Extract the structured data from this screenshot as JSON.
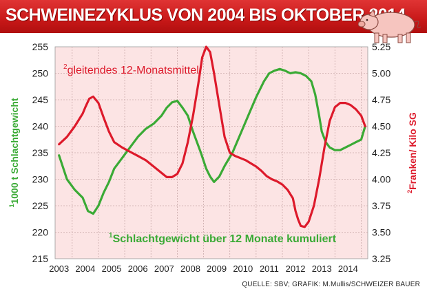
{
  "header": {
    "title": "SCHWEINEZYKLUS VON 2004 BIS OKTOBER 2014"
  },
  "source": "QUELLE: SBV; GRAFIK: M.Mullis/SCHWEIZER BAUER",
  "chart_data": {
    "type": "line",
    "title": "SCHWEINEZYKLUS VON 2004 BIS OKTOBER 2014",
    "x_tick_labels": [
      "2003",
      "2004",
      "2005",
      "2006",
      "2007",
      "2008",
      "2009",
      "2010",
      "2011",
      "2012",
      "2013",
      "2014"
    ],
    "y_left": {
      "label_sup": "1",
      "label": "1000 t Schlachtgewicht",
      "ylim": [
        215,
        255
      ],
      "ticks": [
        "215",
        "220",
        "225",
        "230",
        "235",
        "240",
        "245",
        "250",
        "255"
      ]
    },
    "y_right": {
      "label_sup": "2",
      "label": "Franken/ Kilo SG",
      "ylim": [
        3.25,
        5.25
      ],
      "ticks": [
        "3.25",
        "3.50",
        "3.75",
        "4.00",
        "4.25",
        "4.50",
        "4.75",
        "5.00",
        "5.25"
      ]
    },
    "grid": true,
    "colors": {
      "series1": "#3aaa35",
      "series2": "#dd1a2b",
      "plot_bg": "#fce4e4",
      "title_bg": "#c81818"
    },
    "annotations": [
      {
        "sup": "2",
        "text": "gleitendes 12-Monatsmittel",
        "color": "#dd1a2b"
      },
      {
        "sup": "1",
        "text": "Schlachtgewicht über 12 Monate kumuliert",
        "color": "#3aaa35"
      }
    ],
    "series": [
      {
        "name": "Schlachtgewicht über 12 Monate kumuliert",
        "axis": "left",
        "x": [
          2003.0,
          2003.3,
          2003.6,
          2003.9,
          2004.1,
          2004.3,
          2004.5,
          2004.7,
          2004.9,
          2005.1,
          2005.4,
          2005.7,
          2006.0,
          2006.3,
          2006.6,
          2006.9,
          2007.1,
          2007.3,
          2007.5,
          2007.7,
          2007.9,
          2008.1,
          2008.4,
          2008.6,
          2008.75,
          2008.9,
          2009.1,
          2009.3,
          2009.6,
          2009.9,
          2010.2,
          2010.5,
          2010.8,
          2011.0,
          2011.2,
          2011.4,
          2011.6,
          2011.8,
          2012.0,
          2012.2,
          2012.4,
          2012.6,
          2012.75,
          2012.9,
          2013.0,
          2013.15,
          2013.3,
          2013.5,
          2013.7,
          2013.9,
          2014.1,
          2014.3,
          2014.5,
          2014.65
        ],
        "values": [
          234.5,
          230,
          228,
          226.5,
          224,
          223.5,
          225,
          227.5,
          229.5,
          232,
          234,
          236,
          238,
          239.5,
          240.5,
          242,
          243.5,
          244.5,
          244.8,
          243.5,
          242,
          239,
          235,
          232,
          230.5,
          229.5,
          230.5,
          232.5,
          235,
          238.5,
          242,
          245.5,
          248.5,
          250,
          250.5,
          250.8,
          250.5,
          250,
          250.2,
          250,
          249.5,
          248.5,
          246,
          242,
          239,
          237,
          236,
          235.5,
          235.5,
          236,
          236.5,
          237,
          237.5,
          240
        ]
      },
      {
        "name": "gleitendes 12-Monatsmittel",
        "axis": "right",
        "x": [
          2003.0,
          2003.3,
          2003.6,
          2003.9,
          2004.0,
          2004.15,
          2004.3,
          2004.5,
          2004.7,
          2004.9,
          2005.1,
          2005.4,
          2005.7,
          2006.0,
          2006.3,
          2006.6,
          2006.9,
          2007.1,
          2007.3,
          2007.5,
          2007.7,
          2007.9,
          2008.1,
          2008.3,
          2008.45,
          2008.6,
          2008.75,
          2008.9,
          2009.1,
          2009.3,
          2009.5,
          2009.7,
          2009.9,
          2010.1,
          2010.3,
          2010.5,
          2010.7,
          2010.9,
          2011.1,
          2011.3,
          2011.5,
          2011.7,
          2011.9,
          2012.0,
          2012.1,
          2012.2,
          2012.35,
          2012.5,
          2012.7,
          2012.9,
          2013.1,
          2013.3,
          2013.5,
          2013.7,
          2013.9,
          2014.1,
          2014.3,
          2014.5,
          2014.65
        ],
        "values": [
          4.33,
          4.4,
          4.5,
          4.62,
          4.68,
          4.76,
          4.78,
          4.72,
          4.58,
          4.45,
          4.35,
          4.3,
          4.26,
          4.22,
          4.18,
          4.12,
          4.06,
          4.02,
          4.02,
          4.05,
          4.15,
          4.35,
          4.6,
          4.9,
          5.15,
          5.25,
          5.2,
          5.0,
          4.7,
          4.4,
          4.25,
          4.22,
          4.2,
          4.18,
          4.15,
          4.12,
          4.08,
          4.03,
          4.0,
          3.98,
          3.95,
          3.9,
          3.82,
          3.7,
          3.62,
          3.56,
          3.55,
          3.6,
          3.75,
          4.0,
          4.3,
          4.55,
          4.68,
          4.72,
          4.72,
          4.7,
          4.66,
          4.6,
          4.5
        ]
      }
    ]
  }
}
